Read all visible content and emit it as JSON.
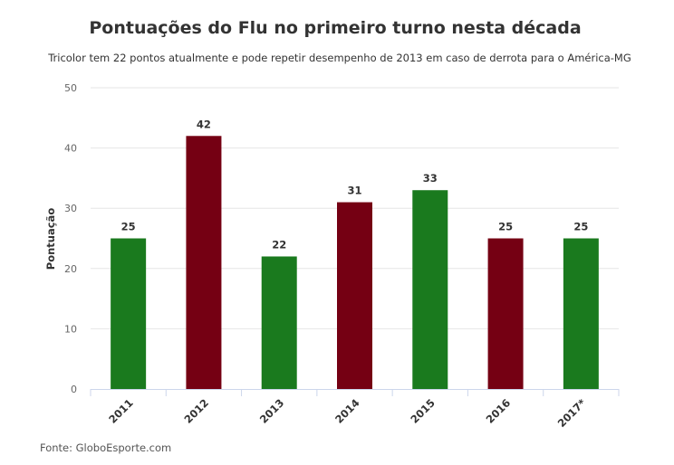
{
  "chart_data": {
    "type": "bar",
    "title": "Pontuações do Flu no primeiro turno nesta década",
    "subtitle": "Tricolor tem 22 pontos atualmente e pode repetir desempenho de 2013 em caso de derrota para o América-MG",
    "ylabel": "Pontuação",
    "xlabel": "",
    "ylim": [
      0,
      50
    ],
    "yticks": [
      0,
      10,
      20,
      30,
      40,
      50
    ],
    "grid": true,
    "categories": [
      "2011",
      "2012",
      "2013",
      "2014",
      "2015",
      "2016",
      "2017*"
    ],
    "values": [
      25,
      42,
      22,
      31,
      33,
      25,
      25
    ],
    "colors": [
      "#1a7a1e",
      "#750013",
      "#1a7a1e",
      "#750013",
      "#1a7a1e",
      "#750013",
      "#1a7a1e"
    ],
    "data_labels": [
      "25",
      "42",
      "22",
      "31",
      "33",
      "25",
      "25"
    ],
    "source": "Fonte: GloboEsporte.com"
  }
}
